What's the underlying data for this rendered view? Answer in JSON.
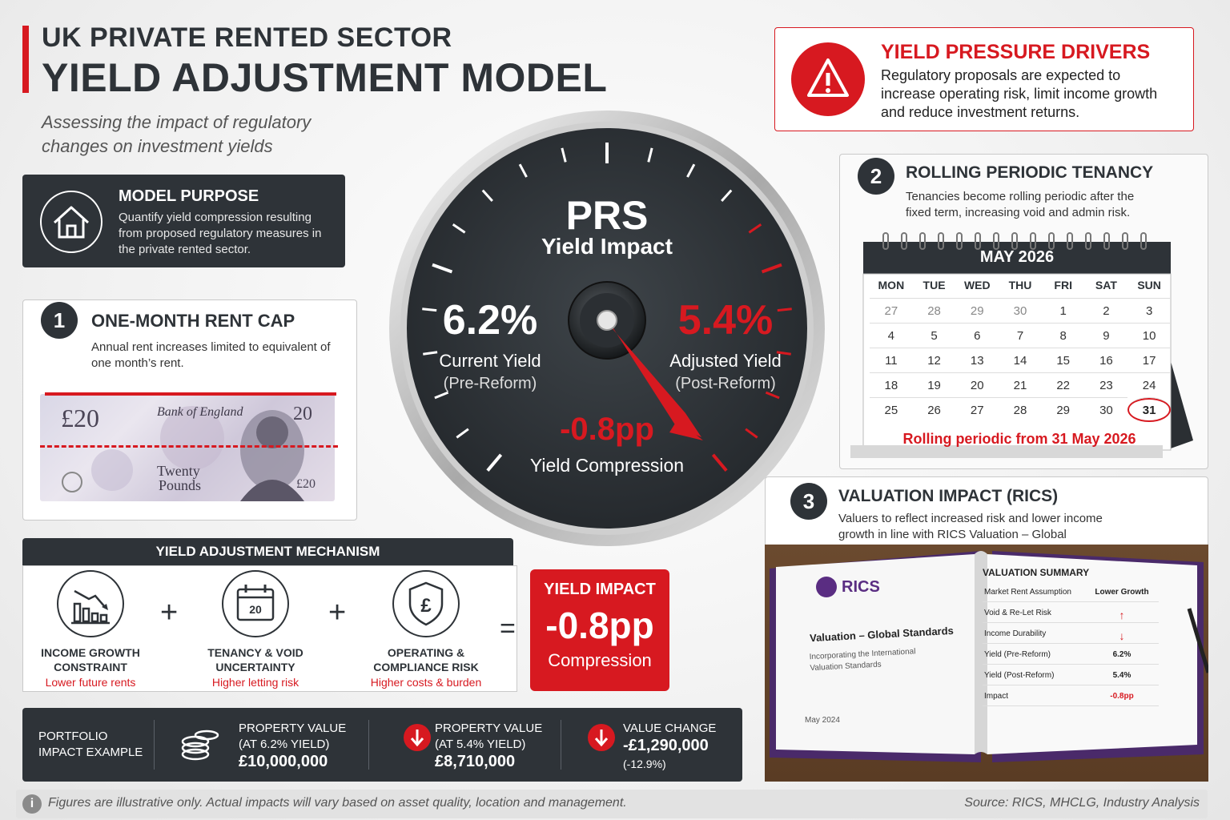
{
  "header": {
    "title_line1": "UK PRIVATE RENTED SECTOR",
    "title_line2": "YIELD ADJUSTMENT MODEL",
    "subtitle": "Assessing the impact of regulatory changes on investment yields"
  },
  "model_purpose": {
    "title": "MODEL PURPOSE",
    "text": "Quantify yield compression resulting from proposed regulatory measures in the private rented sector.",
    "icon": "house-icon"
  },
  "rent_cap": {
    "number": "1",
    "title": "ONE-MONTH RENT CAP",
    "text": "Annual rent increases limited to equivalent of one month’s rent.",
    "note": {
      "value": "£20",
      "corner_value": "20",
      "bottom_corner": "£20",
      "issuer": "Bank of England",
      "words": "Twenty",
      "words2": "Pounds"
    }
  },
  "gauge": {
    "title": "PRS",
    "subtitle": "Yield Impact",
    "current_value": "6.2%",
    "current_label": "Current Yield",
    "current_sub": "(Pre-Reform)",
    "adjusted_value": "5.4%",
    "adjusted_label": "Adjusted Yield",
    "adjusted_sub": "(Post-Reform)",
    "compression_value": "-0.8pp",
    "compression_label": "Yield Compression",
    "accent": "#d71920"
  },
  "mechanism": {
    "header": "YIELD ADJUSTMENT MECHANISM",
    "items": [
      {
        "icon": "declining-bar-chart-icon",
        "label1": "INCOME GROWTH",
        "label2": "CONSTRAINT",
        "sub": "Lower future rents"
      },
      {
        "icon": "calendar-icon",
        "label1": "TENANCY & VOID",
        "label2": "UNCERTAINTY",
        "sub": "Higher letting risk"
      },
      {
        "icon": "pound-shield-icon",
        "label1": "OPERATING &",
        "label2": "COMPLIANCE RISK",
        "sub": "Higher costs & burden"
      }
    ],
    "plus": "+",
    "equals": "=",
    "impact": {
      "title": "YIELD IMPACT",
      "value": "-0.8pp",
      "label": "Compression"
    }
  },
  "portfolio": {
    "label1": "PORTFOLIO",
    "label2": "IMPACT EXAMPLE",
    "items": [
      {
        "icon": "coins-icon",
        "label1": "PROPERTY VALUE",
        "label2": "(AT 6.2% YIELD)",
        "value": "£10,000,000"
      },
      {
        "icon": "down-arrow-icon",
        "label1": "PROPERTY VALUE",
        "label2": "(AT 5.4% YIELD)",
        "value": "£8,710,000"
      },
      {
        "icon": "down-arrow-icon",
        "label1": "VALUE CHANGE",
        "value": "-£1,290,000",
        "note": "(-12.9%)"
      }
    ]
  },
  "footer": {
    "note": "Figures are illustrative only. Actual impacts will vary based on asset quality, location and management.",
    "source": "Source: RICS, MHCLG, Industry Analysis"
  },
  "drivers": {
    "title": "YIELD PRESSURE DRIVERS",
    "text": "Regulatory proposals are expected to increase operating risk, limit income growth and reduce investment returns.",
    "icon": "warning-icon"
  },
  "tenancy": {
    "number": "2",
    "title": "ROLLING PERIODIC TENANCY",
    "text": "Tenancies become rolling periodic after the fixed term, increasing void and admin risk.",
    "calendar": {
      "month": "MAY 2026",
      "days": [
        "MON",
        "TUE",
        "WED",
        "THU",
        "FRI",
        "SAT",
        "SUN"
      ],
      "weeks": [
        [
          "27",
          "28",
          "29",
          "30",
          "1",
          "2",
          "3"
        ],
        [
          "4",
          "5",
          "6",
          "7",
          "8",
          "9",
          "10"
        ],
        [
          "11",
          "12",
          "13",
          "14",
          "15",
          "16",
          "17"
        ],
        [
          "18",
          "19",
          "20",
          "21",
          "22",
          "23",
          "24"
        ],
        [
          "25",
          "26",
          "27",
          "28",
          "29",
          "30",
          "31"
        ]
      ],
      "highlight": "31",
      "caption": "Rolling periodic from 31 May 2026"
    }
  },
  "valuation": {
    "number": "3",
    "title": "VALUATION IMPACT (RICS)",
    "text": "Valuers to reflect increased risk and lower income growth in line with RICS Valuation – Global Standards.",
    "book": {
      "logo": "RICS",
      "doc_title": "Valuation – Global Standards",
      "doc_sub": "Incorporating the International Valuation Standards",
      "date": "May 2024",
      "summary_title": "VALUATION SUMMARY",
      "rows": [
        {
          "label": "Market Rent Assumption",
          "value": "Lower Growth"
        },
        {
          "label": "Void & Re-Let Risk",
          "value": "↑"
        },
        {
          "label": "Income Durability",
          "value": "↓"
        },
        {
          "label": "Yield (Pre-Reform)",
          "value": "6.2%"
        },
        {
          "label": "Yield (Post-Reform)",
          "value": "5.4%"
        },
        {
          "label": "Impact",
          "value": "-0.8pp"
        }
      ]
    }
  }
}
